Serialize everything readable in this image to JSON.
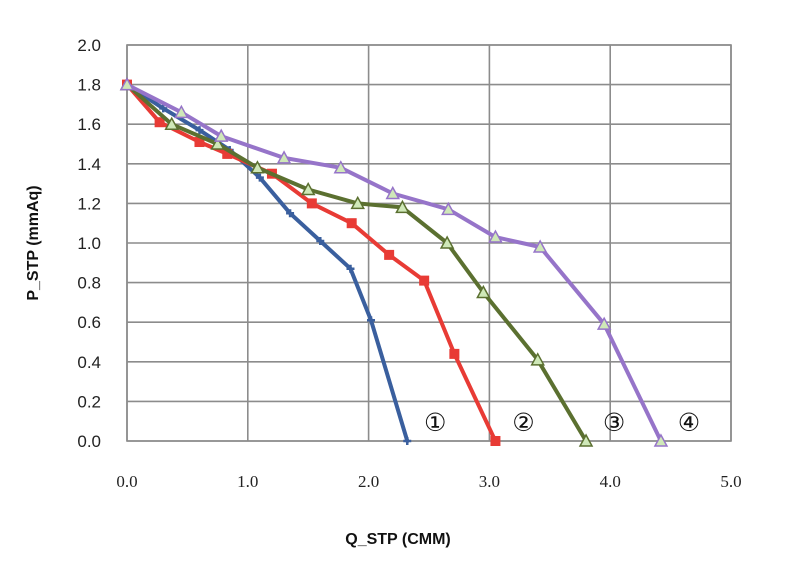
{
  "chart_data": {
    "type": "line",
    "xlabel": "Q_STP (CMM)",
    "ylabel": "P_STP (mmAq)",
    "xlim": [
      0,
      5
    ],
    "ylim": [
      0,
      2
    ],
    "xticks": [
      "0.0",
      "1.0",
      "2.0",
      "3.0",
      "4.0",
      "5.0"
    ],
    "yticks": [
      "0.0",
      "0.2",
      "0.4",
      "0.6",
      "0.8",
      "1.0",
      "1.2",
      "1.4",
      "1.6",
      "1.8",
      "2.0"
    ],
    "grid": true,
    "series": [
      {
        "label": "①",
        "color": "#3a5f9e",
        "marker": "plus",
        "points": [
          [
            0.0,
            1.8
          ],
          [
            0.3,
            1.68
          ],
          [
            0.6,
            1.57
          ],
          [
            0.85,
            1.47
          ],
          [
            1.1,
            1.33
          ],
          [
            1.35,
            1.15
          ],
          [
            1.6,
            1.01
          ],
          [
            1.85,
            0.87
          ],
          [
            2.02,
            0.61
          ],
          [
            2.32,
            0.0
          ]
        ]
      },
      {
        "label": "②",
        "color": "#e83b35",
        "marker": "square",
        "points": [
          [
            0.0,
            1.8
          ],
          [
            0.27,
            1.61
          ],
          [
            0.6,
            1.51
          ],
          [
            0.83,
            1.45
          ],
          [
            1.2,
            1.35
          ],
          [
            1.53,
            1.2
          ],
          [
            1.86,
            1.1
          ],
          [
            2.17,
            0.94
          ],
          [
            2.46,
            0.81
          ],
          [
            2.71,
            0.44
          ],
          [
            3.05,
            0.0
          ]
        ]
      },
      {
        "label": "③",
        "color": "#5b7030",
        "marker": "triangle",
        "points": [
          [
            0.0,
            1.8
          ],
          [
            0.37,
            1.6
          ],
          [
            0.75,
            1.5
          ],
          [
            1.08,
            1.38
          ],
          [
            1.5,
            1.27
          ],
          [
            1.91,
            1.2
          ],
          [
            2.28,
            1.18
          ],
          [
            2.65,
            1.0
          ],
          [
            2.95,
            0.75
          ],
          [
            3.4,
            0.41
          ],
          [
            3.8,
            0.0
          ]
        ]
      },
      {
        "label": "④",
        "color": "#9674c9",
        "marker": "triangle",
        "points": [
          [
            0.0,
            1.8
          ],
          [
            0.45,
            1.66
          ],
          [
            0.78,
            1.54
          ],
          [
            1.3,
            1.43
          ],
          [
            1.77,
            1.38
          ],
          [
            2.2,
            1.25
          ],
          [
            2.66,
            1.17
          ],
          [
            3.05,
            1.03
          ],
          [
            3.42,
            0.98
          ],
          [
            3.95,
            0.59
          ],
          [
            4.42,
            0.0
          ]
        ]
      }
    ]
  }
}
